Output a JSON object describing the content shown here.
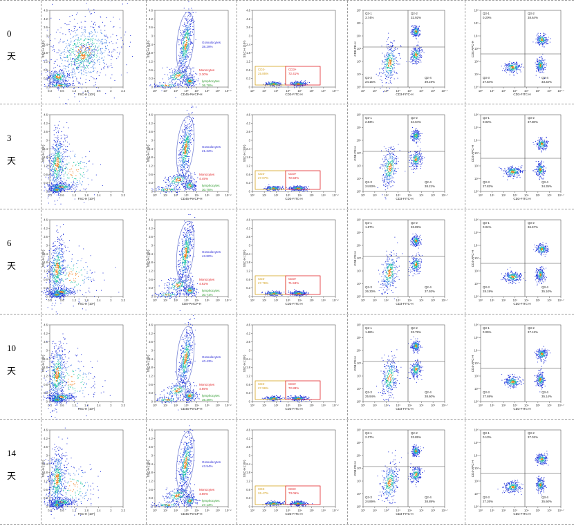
{
  "colors": {
    "granulocytes": "#2b2bd6",
    "monocytes": "#e2262a",
    "lymphocytes": "#2e9b2e",
    "cd3neg": "#d4a21f",
    "cd3pos": "#e2262a",
    "gate_ellipse": "#7a86d6",
    "density_low": "#1a2bd8",
    "density_mid": "#19c2a0",
    "density_high": "#f07a14"
  },
  "rows": [
    {
      "day": "0",
      "unit": "天",
      "scatter": {
        "xlabel": "FSC-H (10⁶)",
        "ylabel": "SSC-H (10⁶)"
      },
      "cd45": {
        "xlabel": "CD45-PerCP-H",
        "ylabel": "SSC-H (10⁶)",
        "gran_name": "Granulocytes",
        "gran_pct": "38.29%",
        "mono_name": "Monocytes",
        "mono_pct": "2.30%",
        "lymph_name": "lymphocytes",
        "lymph_pct": "36.78%"
      },
      "cd3": {
        "xlabel": "CD3-FITC-H",
        "ylabel": "SSC-H (10⁶)",
        "neg_name": "CD3-",
        "neg_pct": "25.85%",
        "pos_name": "CD3+",
        "pos_pct": "72.41%"
      },
      "cd8": {
        "xlabel": "CD3-FITC-H",
        "ylabel": "CD8-PE-H",
        "q1": "Q2-1",
        "q1v": "3.74%",
        "q2": "Q2-2",
        "q2v": "32.92%",
        "q3": "Q2-3",
        "q3v": "24.15%",
        "q4": "Q2-4",
        "q4v": "39.19%"
      },
      "cd4": {
        "xlabel": "CD3-FITC-H",
        "ylabel": "CD4-APC-H",
        "q1": "Q3-1",
        "q1v": "0.20%",
        "q2": "Q3-2",
        "q2v": "38.64%",
        "q3": "Q3-3",
        "q3v": "27.84%",
        "q4": "Q3-4",
        "q4v": "33.32%"
      }
    },
    {
      "day": "3",
      "unit": "天",
      "scatter": {
        "xlabel": "FSC-H (10⁶)",
        "ylabel": "SSC-H (10⁶)"
      },
      "cd45": {
        "xlabel": "CD45-PerCP-H",
        "ylabel": "SSC-H (10⁶)",
        "gran_name": "Granulocytes",
        "gran_pct": "21.22%",
        "mono_name": "Monocytes",
        "mono_pct": "4.45%",
        "lymph_name": "lymphocytes",
        "lymph_pct": "30.75%"
      },
      "cd3": {
        "xlabel": "CD3-FITC-H",
        "ylabel": "SSC-H (10⁶)",
        "neg_name": "CD3-",
        "neg_pct": "27.07%",
        "pos_name": "CD3+",
        "pos_pct": "72.50%"
      },
      "cd8": {
        "xlabel": "CD3-FITC-H",
        "ylabel": "CD8-PE-H",
        "q1": "Q2-1",
        "q1v": "2.83%",
        "q2": "Q2-2",
        "q2v": "34.04%",
        "q3": "Q2-3",
        "q3v": "24.93%",
        "q4": "Q2-4",
        "q4v": "38.21%"
      },
      "cd4": {
        "xlabel": "CD3-FITC-H",
        "ylabel": "CD4-APC-H",
        "q1": "Q3-1",
        "q1v": "0.02%",
        "q2": "Q3-2",
        "q2v": "37.80%",
        "q3": "Q3-3",
        "q3v": "27.82%",
        "q4": "Q3-4",
        "q4v": "34.35%"
      }
    },
    {
      "day": "6",
      "unit": "天",
      "scatter": {
        "xlabel": "FSC-H (10⁶)",
        "ylabel": "SSC-H (10⁶)"
      },
      "cd45": {
        "xlabel": "CD8-PerCP-H",
        "ylabel": "SSC-H (10⁶)",
        "gran_name": "Granulocytes",
        "gran_pct": "43.80%",
        "mono_name": "Monocytes",
        "mono_pct": "4.62%",
        "lymph_name": "lymphocytes",
        "lymph_pct": "30.71%"
      },
      "cd3": {
        "xlabel": "CD3-FITC-H",
        "ylabel": "SSC-H (10⁶)",
        "neg_name": "CD3-",
        "neg_pct": "27.76%",
        "pos_name": "CD3+",
        "pos_pct": "71.94%"
      },
      "cd8": {
        "xlabel": "CD3-FITC-H",
        "ylabel": "CD8-PE-H",
        "q1": "Q2-1",
        "q1v": "1.87%",
        "q2": "Q2-2",
        "q2v": "33.89%",
        "q3": "Q2-3",
        "q3v": "26.30%",
        "q4": "Q2-4",
        "q4v": "37.93%"
      },
      "cd4": {
        "xlabel": "CD3-FITC-H",
        "ylabel": "CD4-APC-H",
        "q1": "Q3-1",
        "q1v": "0.04%",
        "q2": "Q3-2",
        "q2v": "36.67%",
        "q3": "Q3-3",
        "q3v": "28.19%",
        "q4": "Q3-4",
        "q4v": "35.10%"
      }
    },
    {
      "day": "10",
      "unit": "天",
      "scatter": {
        "xlabel": "FSC-H (10⁶)",
        "ylabel": "SSC-H (10⁶)"
      },
      "cd45": {
        "xlabel": "CD45-PerCP-H",
        "ylabel": "SSC-H (10⁶)",
        "gran_name": "Granulocytes",
        "gran_pct": "40.43%",
        "mono_name": "Monocytes",
        "mono_pct": "4.85%",
        "lymph_name": "lymphocytes",
        "lymph_pct": "35.36%"
      },
      "cd3": {
        "xlabel": "CD3-FITC-H",
        "ylabel": "SSC-H (10⁶)",
        "neg_name": "CD3-",
        "neg_pct": "27.96%",
        "pos_name": "CD3+",
        "pos_pct": "72.88%"
      },
      "cd8": {
        "xlabel": "CD3-FITC-H",
        "ylabel": "CD8-PE-H",
        "q1": "Q2-1",
        "q1v": "1.68%",
        "q2": "Q2-2",
        "q2v": "33.79%",
        "q3": "Q2-3",
        "q3v": "25.94%",
        "q4": "Q2-4",
        "q4v": "38.60%"
      },
      "cd4": {
        "xlabel": "CD3-FITC-H",
        "ylabel": "CD4-APC-H",
        "q1": "Q3-1",
        "q1v": "0.05%",
        "q2": "Q3-2",
        "q2v": "37.12%",
        "q3": "Q3-3",
        "q3v": "27.69%",
        "q4": "Q3-4",
        "q4v": "35.14%"
      }
    },
    {
      "day": "14",
      "unit": "天",
      "scatter": {
        "xlabel": "FSC-H (10⁶)",
        "ylabel": "SSC-H (10⁶)"
      },
      "cd45": {
        "xlabel": "CD45-PerCP-H",
        "ylabel": "SSC-H (10⁶)",
        "gran_name": "Granulocytes",
        "gran_pct": "43.54%",
        "mono_name": "Monocytes",
        "mono_pct": "4.86%",
        "lymph_name": "lymphocytes",
        "lymph_pct": "27.13%"
      },
      "cd3": {
        "xlabel": "CD3-FITC-H",
        "ylabel": "SSC-H (10⁶)",
        "neg_name": "CD3-",
        "neg_pct": "26.47%",
        "pos_name": "CD3+",
        "pos_pct": "73.06%"
      },
      "cd8": {
        "xlabel": "CD3-FITC-H",
        "ylabel": "CD8-PE-H",
        "q1": "Q2-1",
        "q1v": "2.37%",
        "q2": "Q2-2",
        "q2v": "33.85%",
        "q3": "Q2-3",
        "q3v": "24.89%",
        "q4": "Q2-4",
        "q4v": "38.89%"
      },
      "cd4": {
        "xlabel": "CD3-FITC-H",
        "ylabel": "CD4-APC-H",
        "q1": "Q3-1",
        "q1v": "0.13%",
        "q2": "Q3-2",
        "q2v": "37.01%",
        "q3": "Q3-3",
        "q3v": "27.26%",
        "q4": "Q3-4",
        "q4v": "35.60%"
      }
    }
  ],
  "axis_ticks": {
    "fsc_x": [
      "0.3",
      "0.6",
      "1.2",
      "1.8",
      "2.4",
      "3",
      "3.3"
    ],
    "ssc_y": [
      "0",
      "0.3",
      "0.6",
      "1.2",
      "1.8",
      "2.4",
      "3",
      "3.6",
      "4.2",
      "4.6"
    ],
    "log_x": [
      "10⁰",
      "10¹",
      "10²",
      "10³",
      "10⁴",
      "10⁵",
      "10⁶",
      "10⁷·²"
    ],
    "log_x_short": [
      "10⁰",
      "10¹",
      "10²",
      "10³",
      "10⁴",
      "10⁵",
      "10⁶",
      "10⁶·⁷"
    ],
    "log_y": [
      "10⁰",
      "10¹",
      "10²",
      "10³",
      "10⁴",
      "10⁵",
      "10⁶"
    ]
  },
  "chart_data": [
    {
      "type": "table",
      "title": "",
      "columns": [
        "day",
        "Granulocytes",
        "Monocytes",
        "lymphocytes",
        "CD3-",
        "CD3+",
        "Q2-1",
        "Q2-2",
        "Q2-3",
        "Q2-4",
        "Q3-1",
        "Q3-2",
        "Q3-3",
        "Q3-4"
      ],
      "rows": [
        [
          "0",
          38.29,
          2.3,
          36.78,
          25.85,
          72.41,
          3.74,
          32.92,
          24.15,
          39.19,
          0.2,
          38.64,
          27.84,
          33.32
        ],
        [
          "3",
          21.22,
          4.45,
          30.75,
          27.07,
          72.5,
          2.83,
          34.04,
          24.93,
          38.21,
          0.02,
          37.8,
          27.82,
          34.35
        ],
        [
          "6",
          43.8,
          4.62,
          30.71,
          27.76,
          71.94,
          1.87,
          33.89,
          26.3,
          37.93,
          0.04,
          36.67,
          28.19,
          35.1
        ],
        [
          "10",
          40.43,
          4.85,
          35.36,
          27.96,
          72.88,
          1.68,
          33.79,
          25.94,
          38.6,
          0.05,
          37.12,
          27.69,
          35.14
        ],
        [
          "14",
          43.54,
          4.86,
          27.13,
          26.47,
          73.06,
          2.37,
          33.85,
          24.89,
          38.89,
          0.13,
          37.01,
          27.26,
          35.6
        ]
      ]
    }
  ]
}
